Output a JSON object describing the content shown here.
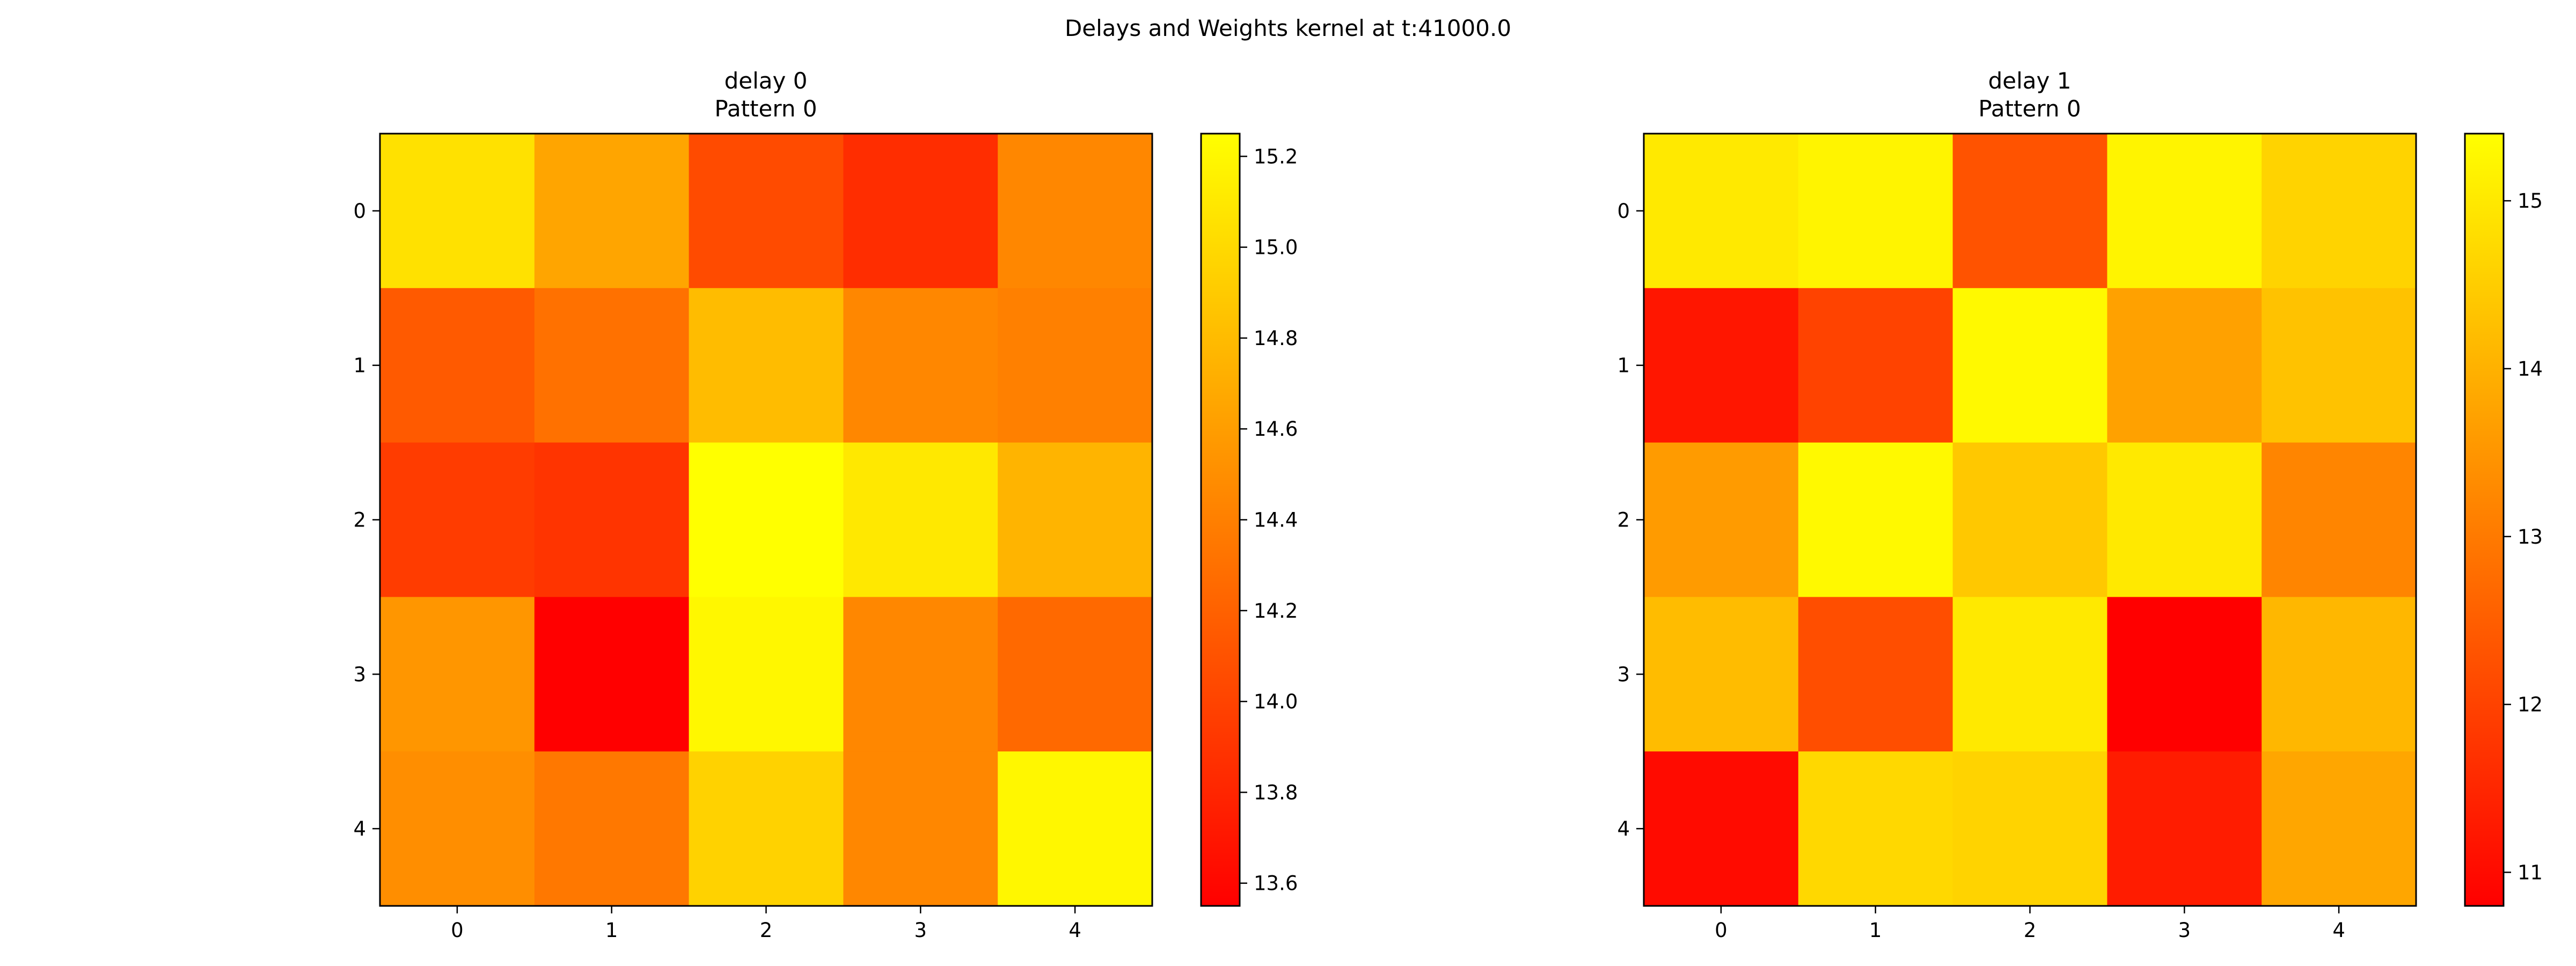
{
  "figure": {
    "title": "Delays and Weights kernel at t:41000.0"
  },
  "chart_data": [
    {
      "type": "heatmap",
      "title": "delay 0",
      "subtitle": "Pattern 0",
      "xlabel": "",
      "ylabel": "",
      "x_ticks": [
        "0",
        "1",
        "2",
        "3",
        "4"
      ],
      "y_ticks": [
        "0",
        "1",
        "2",
        "3",
        "4"
      ],
      "colormap": "autumn",
      "color_low": "#ff0000",
      "color_high": "#ffff00",
      "vmin": 13.55,
      "vmax": 15.25,
      "colorbar_ticks": [
        13.6,
        13.8,
        14.0,
        14.2,
        14.4,
        14.6,
        14.8,
        15.0,
        15.2
      ],
      "colorbar_tick_labels": [
        "13.6",
        "13.8",
        "14.0",
        "14.2",
        "14.4",
        "14.6",
        "14.8",
        "15.0",
        "15.2"
      ],
      "values": [
        [
          15.05,
          14.65,
          14.05,
          13.85,
          14.45
        ],
        [
          14.15,
          14.3,
          14.8,
          14.45,
          14.4
        ],
        [
          13.95,
          13.9,
          15.25,
          15.1,
          14.75
        ],
        [
          14.55,
          13.55,
          15.2,
          14.45,
          14.25
        ],
        [
          14.5,
          14.35,
          14.95,
          14.45,
          15.2
        ]
      ]
    },
    {
      "type": "heatmap",
      "title": "delay 1",
      "subtitle": "Pattern 0",
      "xlabel": "",
      "ylabel": "",
      "x_ticks": [
        "0",
        "1",
        "2",
        "3",
        "4"
      ],
      "y_ticks": [
        "0",
        "1",
        "2",
        "3",
        "4"
      ],
      "colormap": "autumn",
      "color_low": "#ff0000",
      "color_high": "#ffff00",
      "vmin": 10.8,
      "vmax": 15.4,
      "colorbar_ticks": [
        11,
        12,
        13,
        14,
        15
      ],
      "colorbar_tick_labels": [
        "11",
        "12",
        "13",
        "14",
        "15"
      ],
      "values": [
        [
          15.0,
          15.2,
          12.3,
          15.2,
          14.6
        ],
        [
          11.2,
          12.0,
          15.3,
          13.7,
          14.3
        ],
        [
          13.6,
          15.3,
          14.4,
          15.0,
          13.2
        ],
        [
          14.2,
          12.2,
          15.0,
          10.8,
          14.1
        ],
        [
          11.0,
          14.7,
          14.6,
          11.3,
          13.8
        ]
      ]
    }
  ]
}
